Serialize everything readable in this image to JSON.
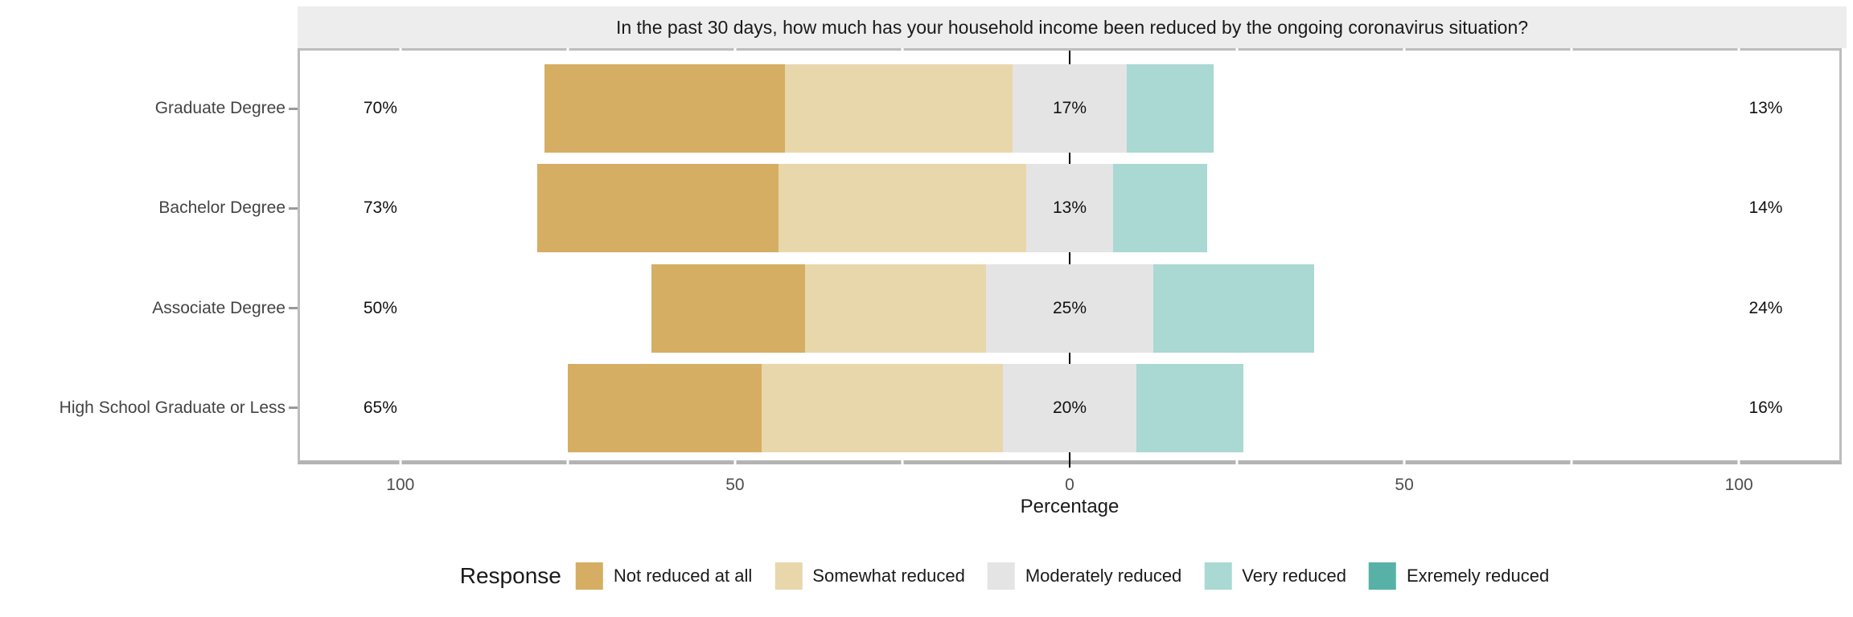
{
  "chart_data": {
    "type": "diverging_stacked_bar",
    "title": "In the past 30 days, how much has your household income been reduced by the ongoing coronavirus situation?",
    "xlabel": "Percentage",
    "legend_title": "Response",
    "legend_position": "bottom",
    "categories": [
      "Graduate Degree",
      "Bachelor Degree",
      "Associate Degree",
      "High School Graduate or Less"
    ],
    "series": [
      {
        "name": "Not reduced at all",
        "color": "#d5ae63",
        "values": [
          36,
          36,
          23,
          29
        ]
      },
      {
        "name": "Somewhat reduced",
        "color": "#e9d7ac",
        "values": [
          34,
          37,
          27,
          36
        ]
      },
      {
        "name": "Moderately reduced",
        "color": "#e4e4e4",
        "values": [
          17,
          13,
          25,
          20
        ]
      },
      {
        "name": "Very reduced",
        "color": "#aad8d2",
        "values": [
          13,
          14,
          24,
          16
        ]
      },
      {
        "name": "Exremely reduced",
        "color": "#57b1a6",
        "values": [
          0,
          0,
          0,
          0
        ]
      }
    ],
    "value_labels": {
      "left": [
        "70%",
        "73%",
        "50%",
        "65%"
      ],
      "center": [
        "17%",
        "13%",
        "25%",
        "20%"
      ],
      "right": [
        "13%",
        "14%",
        "24%",
        "16%"
      ]
    },
    "axis": {
      "range": [
        -115,
        115
      ],
      "major_ticks": [
        {
          "value": -100,
          "label": "100"
        },
        {
          "value": -50,
          "label": "50"
        },
        {
          "value": 0,
          "label": "0"
        },
        {
          "value": 50,
          "label": "50"
        },
        {
          "value": 100,
          "label": "100"
        }
      ],
      "minor_ticks": [
        -75,
        -25,
        25,
        75
      ],
      "note": "Moderately reduced segment is centered on zero; left label = Not reduced at all + Somewhat reduced; right label = Very reduced + Exremely reduced"
    },
    "colors": {
      "strip_background": "#ededed",
      "panel_border": "#bdbdbd",
      "axis_line": "#b3b3b3",
      "zero_line": "#000000",
      "title_text": "#1a1a1a",
      "axis_text": "#4d4d4d"
    }
  }
}
